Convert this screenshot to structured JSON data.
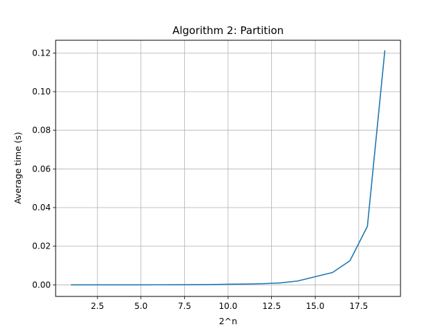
{
  "chart_data": {
    "type": "line",
    "title": "Algorithm 2: Partition",
    "xlabel": "2^n",
    "ylabel": "Average time (s)",
    "grid": true,
    "legend": "none",
    "xlim": [
      0.1,
      19.9
    ],
    "ylim": [
      -0.006,
      0.1266
    ],
    "x_ticks": [
      2.5,
      5.0,
      7.5,
      10.0,
      12.5,
      15.0,
      17.5
    ],
    "x_tick_labels": [
      "2.5",
      "5.0",
      "7.5",
      "10.0",
      "12.5",
      "15.0",
      "17.5"
    ],
    "y_ticks": [
      0.0,
      0.02,
      0.04,
      0.06,
      0.08,
      0.1,
      0.12
    ],
    "y_tick_labels": [
      "0.00",
      "0.02",
      "0.04",
      "0.06",
      "0.08",
      "0.10",
      "0.12"
    ],
    "series": [
      {
        "color": "#1f77b4",
        "x": [
          1,
          2,
          3,
          4,
          5,
          6,
          7,
          8,
          9,
          10,
          11,
          12,
          13,
          14,
          15,
          16,
          17,
          18,
          19
        ],
        "y": [
          1e-06,
          2e-06,
          3e-06,
          5e-06,
          1e-05,
          2e-05,
          4e-05,
          8e-05,
          0.00015,
          0.0003,
          0.0004,
          0.0006,
          0.001,
          0.002,
          0.0042,
          0.0064,
          0.0125,
          0.0303,
          0.1212
        ]
      }
    ]
  }
}
